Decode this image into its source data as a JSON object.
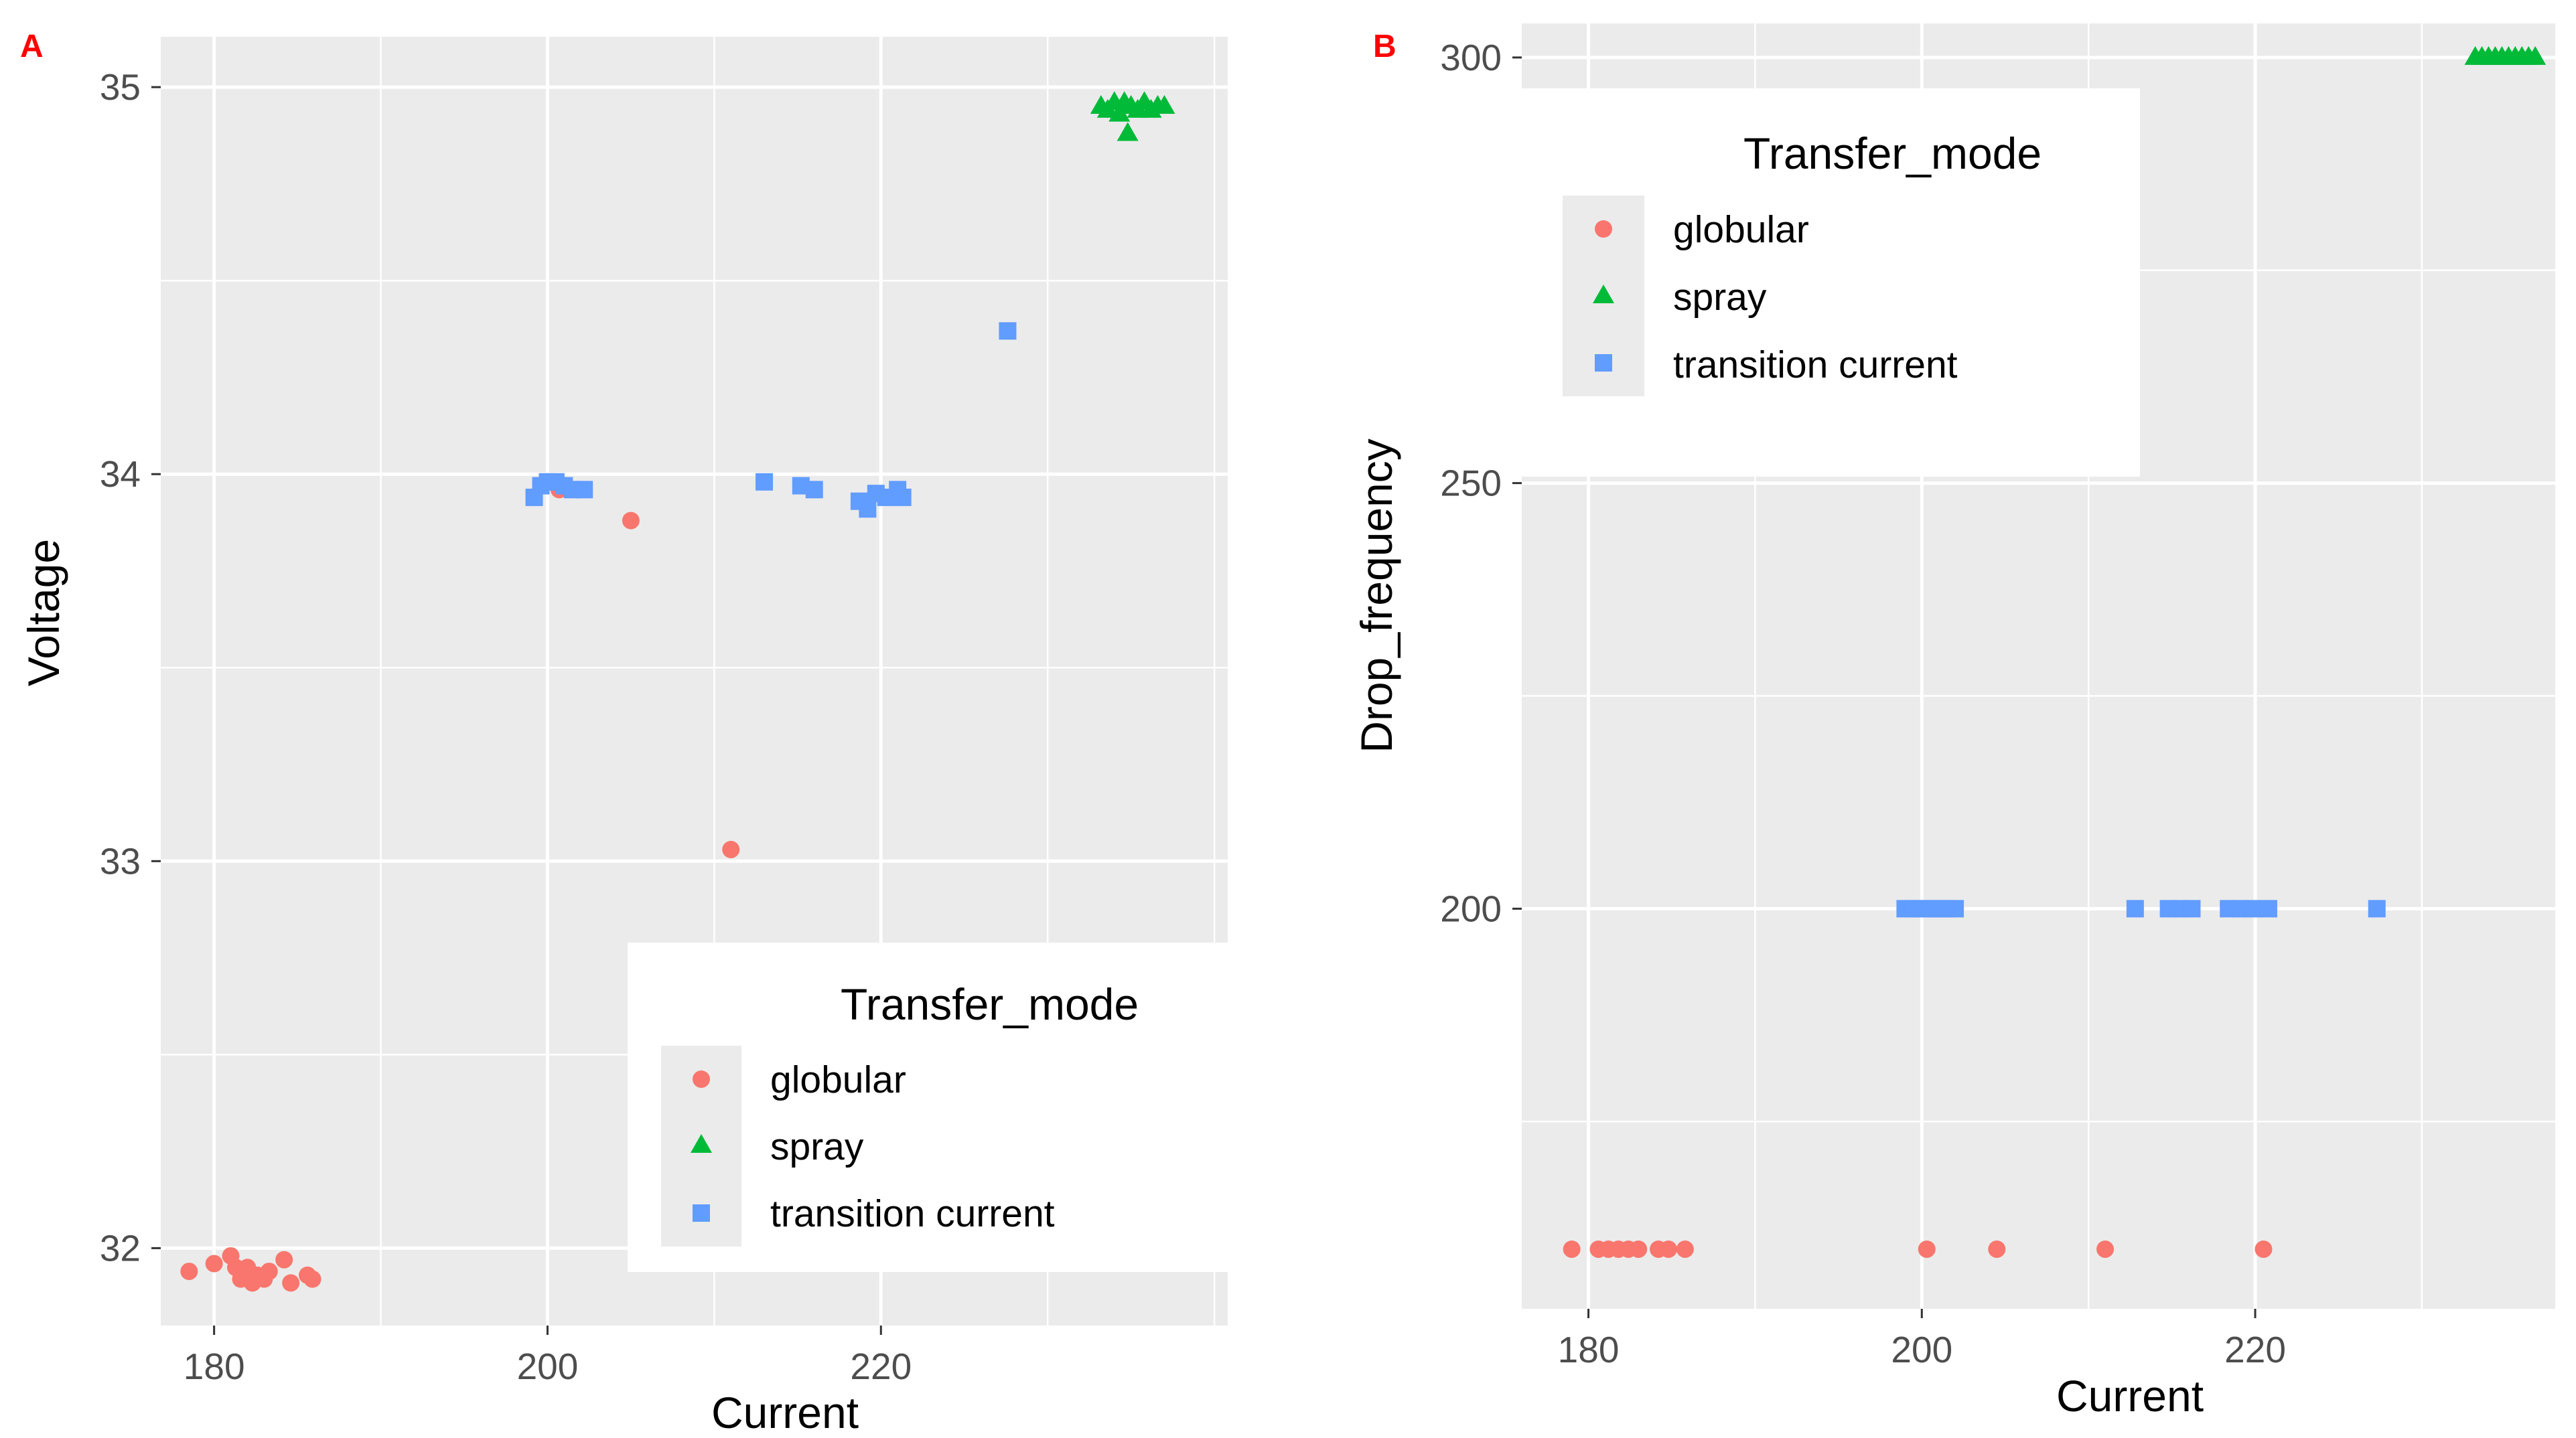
{
  "panel_labels": [
    "A",
    "B"
  ],
  "chart_data": [
    {
      "type": "scatter",
      "panel": "A",
      "xlabel": "Current",
      "ylabel": "Voltage",
      "xlim": [
        176.8,
        240.8
      ],
      "ylim": [
        31.8,
        35.13
      ],
      "x_ticks": [
        180,
        200,
        220
      ],
      "y_ticks": [
        32,
        33,
        34,
        35
      ],
      "grid": true,
      "legend": {
        "title": "Transfer_mode",
        "placement": "bottom-right",
        "entries": [
          "globular",
          "spray",
          "transition current"
        ]
      },
      "series": [
        {
          "name": "globular",
          "shape": "circle",
          "color": "#F8766D",
          "points": [
            [
              178.5,
              31.94
            ],
            [
              180.0,
              31.96
            ],
            [
              181.0,
              31.98
            ],
            [
              181.3,
              31.95
            ],
            [
              181.6,
              31.92
            ],
            [
              182.0,
              31.95
            ],
            [
              182.3,
              31.91
            ],
            [
              182.6,
              31.93
            ],
            [
              183.0,
              31.92
            ],
            [
              183.3,
              31.94
            ],
            [
              184.2,
              31.97
            ],
            [
              184.6,
              31.91
            ],
            [
              185.6,
              31.93
            ],
            [
              185.9,
              31.92
            ],
            [
              200.7,
              33.96
            ],
            [
              205.0,
              33.88
            ],
            [
              211.0,
              33.03
            ]
          ]
        },
        {
          "name": "spray",
          "shape": "triangle",
          "color": "#00BA38",
          "points": [
            [
              233.2,
              34.95
            ],
            [
              233.6,
              34.94
            ],
            [
              234.0,
              34.96
            ],
            [
              234.3,
              34.93
            ],
            [
              234.6,
              34.96
            ],
            [
              234.8,
              34.88
            ],
            [
              235.0,
              34.95
            ],
            [
              235.4,
              34.94
            ],
            [
              235.8,
              34.96
            ],
            [
              236.2,
              34.94
            ],
            [
              236.6,
              34.95
            ],
            [
              237.0,
              34.95
            ]
          ]
        },
        {
          "name": "transition current",
          "shape": "square",
          "color": "#619CFF",
          "points": [
            [
              199.2,
              33.94
            ],
            [
              199.6,
              33.97
            ],
            [
              200.0,
              33.98
            ],
            [
              200.5,
              33.98
            ],
            [
              201.0,
              33.97
            ],
            [
              201.5,
              33.96
            ],
            [
              202.2,
              33.96
            ],
            [
              213.0,
              33.98
            ],
            [
              215.2,
              33.97
            ],
            [
              216.0,
              33.96
            ],
            [
              218.7,
              33.93
            ],
            [
              219.2,
              33.91
            ],
            [
              219.7,
              33.95
            ],
            [
              220.3,
              33.94
            ],
            [
              221.0,
              33.96
            ],
            [
              221.3,
              33.94
            ],
            [
              227.6,
              34.37
            ]
          ]
        }
      ]
    },
    {
      "type": "scatter",
      "panel": "B",
      "xlabel": "Current",
      "ylabel": "Drop_frequency",
      "xlim": [
        176,
        238
      ],
      "ylim": [
        153,
        304
      ],
      "x_ticks": [
        180,
        200,
        220
      ],
      "y_ticks": [
        200,
        250,
        300
      ],
      "grid": true,
      "legend": {
        "title": "Transfer_mode",
        "placement": "top-left",
        "entries": [
          "globular",
          "spray",
          "transition current"
        ]
      },
      "series": [
        {
          "name": "globular",
          "shape": "circle",
          "color": "#F8766D",
          "points": [
            [
              179.0,
              160
            ],
            [
              180.6,
              160
            ],
            [
              181.2,
              160
            ],
            [
              181.8,
              160
            ],
            [
              182.4,
              160
            ],
            [
              183.0,
              160
            ],
            [
              184.2,
              160
            ],
            [
              184.8,
              160
            ],
            [
              185.8,
              160
            ],
            [
              200.3,
              160
            ],
            [
              204.5,
              160
            ],
            [
              211.0,
              160
            ],
            [
              220.5,
              160
            ]
          ]
        },
        {
          "name": "spray",
          "shape": "triangle",
          "color": "#00BA38",
          "points": [
            [
              233.2,
              300
            ],
            [
              233.6,
              300
            ],
            [
              234.0,
              300
            ],
            [
              234.4,
              300
            ],
            [
              234.8,
              300
            ],
            [
              235.2,
              300
            ],
            [
              235.6,
              300
            ],
            [
              236.0,
              300
            ],
            [
              236.4,
              300
            ],
            [
              236.8,
              300
            ]
          ]
        },
        {
          "name": "transition current",
          "shape": "square",
          "color": "#619CFF",
          "points": [
            [
              199.0,
              200
            ],
            [
              199.5,
              200
            ],
            [
              200.0,
              200
            ],
            [
              200.5,
              200
            ],
            [
              201.0,
              200
            ],
            [
              201.5,
              200
            ],
            [
              202.0,
              200
            ],
            [
              212.8,
              200
            ],
            [
              214.8,
              200
            ],
            [
              215.5,
              200
            ],
            [
              216.2,
              200
            ],
            [
              218.4,
              200
            ],
            [
              219.1,
              200
            ],
            [
              219.8,
              200
            ],
            [
              220.8,
              200
            ],
            [
              227.3,
              200
            ]
          ]
        }
      ]
    }
  ],
  "colors": {
    "panel_label": "#ff0000",
    "plot_background": "#EBEBEB",
    "grid_line": "#ffffff",
    "globular": "#F8766D",
    "spray": "#00BA38",
    "transition_current": "#619CFF"
  }
}
